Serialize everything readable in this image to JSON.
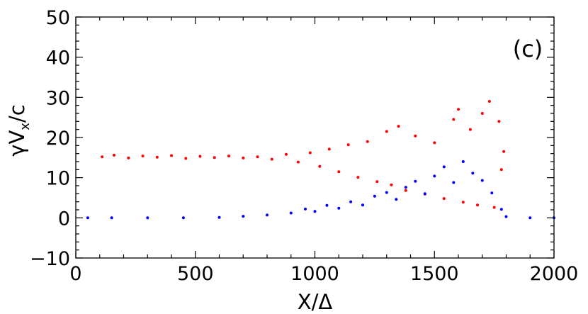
{
  "chart_data": {
    "type": "scatter",
    "panel_label": "(c)",
    "xlabel": "X/Δ",
    "ylabel_main": "γV",
    "ylabel_sub": "x",
    "ylabel_tail": "/c",
    "xlim": [
      0,
      2000
    ],
    "ylim": [
      -10,
      50
    ],
    "x_ticks": [
      0,
      500,
      1000,
      1500,
      2000
    ],
    "x_tick_labels": [
      "0",
      "500",
      "1000",
      "1500",
      "2000"
    ],
    "y_ticks": [
      -10,
      0,
      10,
      20,
      30,
      40,
      50
    ],
    "y_tick_labels": [
      "−10",
      "0",
      "10",
      "20",
      "30",
      "40",
      "50"
    ],
    "grid": false,
    "legend": "none",
    "series": [
      {
        "color": "#ff0000",
        "points": [
          [
            110,
            15.2
          ],
          [
            160,
            15.6
          ],
          [
            220,
            14.9
          ],
          [
            280,
            15.4
          ],
          [
            340,
            15.1
          ],
          [
            400,
            15.5
          ],
          [
            460,
            14.8
          ],
          [
            520,
            15.3
          ],
          [
            580,
            15.0
          ],
          [
            640,
            15.4
          ],
          [
            700,
            14.9
          ],
          [
            760,
            15.2
          ],
          [
            820,
            14.6
          ],
          [
            880,
            15.8
          ],
          [
            930,
            13.9
          ],
          [
            980,
            16.2
          ],
          [
            1020,
            12.8
          ],
          [
            1060,
            17.1
          ],
          [
            1100,
            11.5
          ],
          [
            1140,
            18.2
          ],
          [
            1180,
            10.1
          ],
          [
            1220,
            19.0
          ],
          [
            1260,
            9.0
          ],
          [
            1300,
            21.5
          ],
          [
            1320,
            8.2
          ],
          [
            1350,
            22.8
          ],
          [
            1380,
            6.8
          ],
          [
            1420,
            20.4
          ],
          [
            1460,
            5.9
          ],
          [
            1500,
            18.7
          ],
          [
            1540,
            4.8
          ],
          [
            1580,
            24.5
          ],
          [
            1600,
            27.0
          ],
          [
            1620,
            3.9
          ],
          [
            1650,
            22.0
          ],
          [
            1680,
            3.2
          ],
          [
            1700,
            26.0
          ],
          [
            1730,
            29.0
          ],
          [
            1750,
            2.6
          ],
          [
            1770,
            24.0
          ],
          [
            1780,
            12.0
          ],
          [
            1790,
            16.5
          ]
        ]
      },
      {
        "color": "#0000ff",
        "points": [
          [
            50,
            0.0
          ],
          [
            150,
            0.0
          ],
          [
            300,
            0.0
          ],
          [
            450,
            0.0
          ],
          [
            600,
            0.1
          ],
          [
            700,
            0.4
          ],
          [
            800,
            0.7
          ],
          [
            900,
            1.2
          ],
          [
            960,
            2.2
          ],
          [
            1000,
            1.6
          ],
          [
            1050,
            3.1
          ],
          [
            1100,
            2.4
          ],
          [
            1150,
            4.0
          ],
          [
            1200,
            3.2
          ],
          [
            1250,
            5.4
          ],
          [
            1300,
            6.3
          ],
          [
            1340,
            4.6
          ],
          [
            1380,
            7.6
          ],
          [
            1420,
            9.1
          ],
          [
            1460,
            6.0
          ],
          [
            1500,
            10.4
          ],
          [
            1540,
            12.7
          ],
          [
            1580,
            8.8
          ],
          [
            1620,
            14.0
          ],
          [
            1660,
            11.1
          ],
          [
            1700,
            9.3
          ],
          [
            1740,
            6.2
          ],
          [
            1780,
            2.1
          ],
          [
            1800,
            0.3
          ],
          [
            1900,
            0.0
          ],
          [
            2000,
            0.0
          ]
        ]
      }
    ]
  }
}
